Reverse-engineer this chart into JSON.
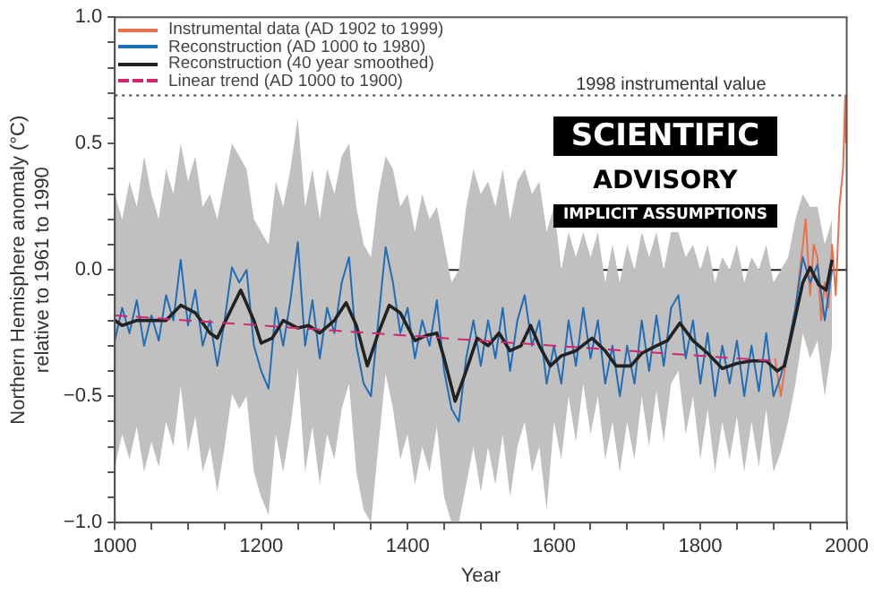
{
  "chart_data": {
    "type": "line",
    "xlabel": "Year",
    "ylabel": "Northern Hemisphere anomaly (°C)\nrelative to 1961 to 1990",
    "xlim": [
      1000,
      2000
    ],
    "ylim": [
      -1.0,
      1.0
    ],
    "xticks": [
      1000,
      {
        "value": 1050,
        "label": null
      },
      1200,
      {
        "value": 1100,
        "label": null
      },
      {
        "value": 1150,
        "label": null
      },
      {
        "value": 1250,
        "label": null
      },
      {
        "value": 1300,
        "label": null
      },
      {
        "value": 1350,
        "label": null
      },
      1400,
      {
        "value": 1450,
        "label": null
      },
      {
        "value": 1500,
        "label": null
      },
      {
        "value": 1550,
        "label": null
      },
      1600,
      {
        "value": 1650,
        "label": null
      },
      {
        "value": 1700,
        "label": null
      },
      {
        "value": 1750,
        "label": null
      },
      1800,
      {
        "value": 1850,
        "label": null
      },
      {
        "value": 1900,
        "label": null
      },
      {
        "value": 1950,
        "label": null
      },
      2000
    ],
    "yticks": [
      {
        "value": -1.0,
        "label": "−1.0"
      },
      {
        "value": -0.9,
        "label": null
      },
      {
        "value": -0.8,
        "label": null
      },
      {
        "value": -0.7,
        "label": null
      },
      {
        "value": -0.6,
        "label": null
      },
      {
        "value": -0.5,
        "label": "−0.5"
      },
      {
        "value": -0.4,
        "label": null
      },
      {
        "value": -0.3,
        "label": null
      },
      {
        "value": -0.2,
        "label": null
      },
      {
        "value": -0.1,
        "label": null
      },
      {
        "value": 0.0,
        "label": "0.0"
      },
      {
        "value": 0.1,
        "label": null
      },
      {
        "value": 0.2,
        "label": null
      },
      {
        "value": 0.3,
        "label": null
      },
      {
        "value": 0.4,
        "label": null
      },
      {
        "value": 0.5,
        "label": "0.5"
      },
      {
        "value": 0.6,
        "label": null
      },
      {
        "value": 0.7,
        "label": null
      },
      {
        "value": 0.8,
        "label": null
      },
      {
        "value": 0.9,
        "label": null
      },
      {
        "value": 1.0,
        "label": "1.0"
      }
    ],
    "grid": false,
    "legend": "top left",
    "marker": "none",
    "ref_lines": [
      {
        "axis": "y",
        "value": 0,
        "color": "#222222",
        "line_style": "solid"
      },
      {
        "axis": "y",
        "value": 0.69,
        "label": "1998 instrumental value",
        "color": "#444444",
        "line_style": "dotted"
      }
    ],
    "annotations": [
      "SCIENTIFIC",
      "ADVISORY",
      "IMPLICIT ASSUMPTIONS"
    ],
    "series": [
      {
        "name": "Instrumental data (AD 1902 to 1999)",
        "color": "#e8704a",
        "line_style": "solid",
        "x": [
          1902,
          1910,
          1920,
          1930,
          1938,
          1944,
          1950,
          1955,
          1960,
          1965,
          1970,
          1975,
          1980,
          1985,
          1990,
          1995,
          1998,
          1999
        ],
        "values": [
          -0.35,
          -0.5,
          -0.3,
          -0.15,
          0.05,
          0.2,
          -0.1,
          0.1,
          0.05,
          -0.2,
          -0.05,
          -0.15,
          0.1,
          -0.1,
          0.25,
          0.4,
          0.69,
          0.5
        ]
      },
      {
        "name": "Reconstruction (AD 1000 to 1980)",
        "color": "#1f6db5",
        "line_style": "solid",
        "x": [
          1000,
          1010,
          1020,
          1030,
          1040,
          1050,
          1060,
          1070,
          1080,
          1090,
          1100,
          1110,
          1120,
          1130,
          1140,
          1150,
          1160,
          1170,
          1180,
          1190,
          1200,
          1210,
          1220,
          1230,
          1240,
          1250,
          1260,
          1270,
          1280,
          1290,
          1300,
          1310,
          1320,
          1330,
          1340,
          1350,
          1360,
          1370,
          1380,
          1390,
          1400,
          1410,
          1420,
          1430,
          1440,
          1450,
          1460,
          1470,
          1480,
          1490,
          1500,
          1510,
          1520,
          1530,
          1540,
          1550,
          1560,
          1570,
          1580,
          1590,
          1600,
          1610,
          1620,
          1630,
          1640,
          1650,
          1660,
          1670,
          1680,
          1690,
          1700,
          1710,
          1720,
          1730,
          1740,
          1750,
          1760,
          1770,
          1780,
          1790,
          1800,
          1810,
          1820,
          1830,
          1840,
          1850,
          1860,
          1870,
          1880,
          1890,
          1900,
          1910,
          1920,
          1930,
          1940,
          1950,
          1960,
          1970,
          1980
        ],
        "values": [
          -0.28,
          -0.15,
          -0.25,
          -0.12,
          -0.3,
          -0.18,
          -0.28,
          -0.1,
          -0.2,
          0.04,
          -0.22,
          -0.08,
          -0.3,
          -0.2,
          -0.38,
          -0.2,
          0.01,
          -0.05,
          0.0,
          -0.3,
          -0.4,
          -0.47,
          -0.15,
          -0.3,
          -0.12,
          0.11,
          -0.3,
          -0.12,
          -0.35,
          -0.15,
          -0.25,
          -0.05,
          0.05,
          -0.3,
          -0.45,
          -0.5,
          -0.2,
          0.09,
          -0.05,
          -0.25,
          -0.15,
          -0.35,
          -0.2,
          -0.3,
          -0.12,
          -0.4,
          -0.55,
          -0.6,
          -0.35,
          -0.2,
          -0.38,
          -0.2,
          -0.35,
          -0.15,
          -0.4,
          -0.2,
          -0.1,
          -0.3,
          -0.2,
          -0.45,
          -0.3,
          -0.45,
          -0.2,
          -0.38,
          -0.15,
          -0.35,
          -0.2,
          -0.45,
          -0.3,
          -0.5,
          -0.3,
          -0.45,
          -0.2,
          -0.4,
          -0.18,
          -0.38,
          -0.15,
          -0.1,
          -0.35,
          -0.2,
          -0.45,
          -0.25,
          -0.5,
          -0.3,
          -0.45,
          -0.28,
          -0.5,
          -0.3,
          -0.48,
          -0.25,
          -0.5,
          -0.42,
          -0.3,
          -0.15,
          0.05,
          -0.05,
          0.02,
          -0.2,
          0.0
        ],
        "upper": [
          0.3,
          0.2,
          0.35,
          0.25,
          0.45,
          0.3,
          0.2,
          0.4,
          0.3,
          0.5,
          0.35,
          0.45,
          0.25,
          0.3,
          0.2,
          0.35,
          0.5,
          0.45,
          0.4,
          0.2,
          0.15,
          0.1,
          0.35,
          0.25,
          0.4,
          0.6,
          0.25,
          0.4,
          0.2,
          0.4,
          0.3,
          0.45,
          0.5,
          0.25,
          0.1,
          0.05,
          0.3,
          0.45,
          0.4,
          0.25,
          0.3,
          0.15,
          0.3,
          0.2,
          0.25,
          0.1,
          -0.05,
          0.0,
          0.25,
          0.4,
          0.3,
          0.35,
          0.25,
          0.4,
          0.2,
          0.35,
          0.4,
          0.3,
          0.35,
          0.15,
          0.25,
          0.0,
          0.15,
          0.05,
          0.15,
          0.05,
          0.15,
          -0.05,
          0.1,
          -0.05,
          0.1,
          0.0,
          0.15,
          0.05,
          0.15,
          0.0,
          0.15,
          0.15,
          0.05,
          0.1,
          0.0,
          0.1,
          -0.05,
          0.05,
          0.0,
          0.1,
          -0.05,
          0.05,
          0.0,
          0.1,
          -0.05,
          0.0,
          0.05,
          0.2,
          0.3,
          0.25,
          0.25,
          0.1,
          0.2
        ],
        "lower": [
          -0.78,
          -0.65,
          -0.75,
          -0.62,
          -0.8,
          -0.68,
          -0.78,
          -0.6,
          -0.7,
          -0.46,
          -0.72,
          -0.58,
          -0.8,
          -0.7,
          -0.88,
          -0.7,
          -0.49,
          -0.55,
          -0.5,
          -0.8,
          -0.9,
          -0.97,
          -0.65,
          -0.8,
          -0.62,
          -0.39,
          -0.8,
          -0.62,
          -0.85,
          -0.65,
          -0.75,
          -0.55,
          -0.45,
          -0.8,
          -0.95,
          -1.0,
          -0.7,
          -0.41,
          -0.55,
          -0.75,
          -0.65,
          -0.85,
          -0.7,
          -0.8,
          -0.62,
          -0.9,
          -1.0,
          -1.0,
          -0.85,
          -0.7,
          -0.88,
          -0.7,
          -0.85,
          -0.65,
          -0.9,
          -0.7,
          -0.6,
          -0.8,
          -0.7,
          -0.95,
          -0.6,
          -0.75,
          -0.5,
          -0.68,
          -0.45,
          -0.65,
          -0.5,
          -0.75,
          -0.6,
          -0.8,
          -0.6,
          -0.75,
          -0.5,
          -0.7,
          -0.48,
          -0.68,
          -0.45,
          -0.4,
          -0.65,
          -0.5,
          -0.75,
          -0.55,
          -0.8,
          -0.6,
          -0.75,
          -0.58,
          -0.8,
          -0.6,
          -0.78,
          -0.55,
          -0.8,
          -0.72,
          -0.6,
          -0.45,
          -0.25,
          -0.35,
          -0.28,
          -0.5,
          -0.3
        ]
      },
      {
        "name": "Reconstruction (40 year smoothed)",
        "color": "#222222",
        "line_style": "solid",
        "x": [
          1000,
          1010,
          1030,
          1050,
          1070,
          1090,
          1110,
          1130,
          1140,
          1160,
          1172,
          1190,
          1200,
          1215,
          1230,
          1250,
          1265,
          1280,
          1300,
          1316,
          1330,
          1345,
          1360,
          1375,
          1390,
          1410,
          1425,
          1440,
          1450,
          1465,
          1480,
          1495,
          1510,
          1525,
          1540,
          1555,
          1568,
          1580,
          1595,
          1610,
          1630,
          1652,
          1670,
          1685,
          1705,
          1720,
          1740,
          1755,
          1772,
          1790,
          1810,
          1830,
          1850,
          1870,
          1890,
          1905,
          1915,
          1925,
          1940,
          1950,
          1962,
          1972,
          1980
        ],
        "values": [
          -0.2,
          -0.22,
          -0.2,
          -0.2,
          -0.2,
          -0.14,
          -0.17,
          -0.25,
          -0.27,
          -0.15,
          -0.08,
          -0.2,
          -0.29,
          -0.27,
          -0.2,
          -0.23,
          -0.22,
          -0.25,
          -0.2,
          -0.13,
          -0.22,
          -0.38,
          -0.25,
          -0.14,
          -0.17,
          -0.28,
          -0.26,
          -0.25,
          -0.35,
          -0.52,
          -0.4,
          -0.27,
          -0.3,
          -0.25,
          -0.32,
          -0.3,
          -0.22,
          -0.3,
          -0.38,
          -0.34,
          -0.32,
          -0.27,
          -0.32,
          -0.38,
          -0.38,
          -0.33,
          -0.3,
          -0.28,
          -0.21,
          -0.28,
          -0.33,
          -0.39,
          -0.37,
          -0.36,
          -0.36,
          -0.4,
          -0.38,
          -0.25,
          -0.05,
          0.01,
          -0.06,
          -0.08,
          0.04
        ]
      },
      {
        "name": "Linear trend (AD 1000 to 1900)",
        "color": "#d6246e",
        "line_style": "dashed",
        "x": [
          1000,
          1900
        ],
        "values": [
          -0.18,
          -0.36
        ]
      }
    ]
  }
}
